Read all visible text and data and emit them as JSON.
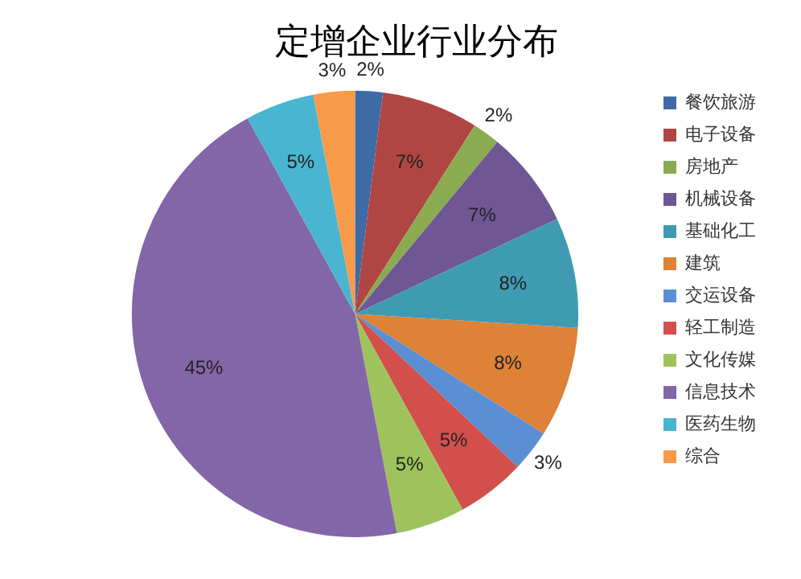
{
  "chart_data": {
    "type": "pie",
    "title": "定增企业行业分布",
    "categories": [
      "餐饮旅游",
      "电子设备",
      "房地产",
      "机械设备",
      "基础化工",
      "建筑",
      "交运设备",
      "轻工制造",
      "文化传媒",
      "信息技术",
      "医药生物",
      "综合"
    ],
    "values": [
      2,
      7,
      2,
      7,
      8,
      8,
      3,
      5,
      5,
      45,
      5,
      3
    ],
    "value_labels": [
      "2%",
      "7%",
      "2%",
      "7%",
      "8%",
      "8%",
      "3%",
      "5%",
      "5%",
      "45%",
      "5%",
      "3%"
    ],
    "colors": [
      "#3e6aa6",
      "#b04643",
      "#8aab4f",
      "#6f5694",
      "#3f9bb2",
      "#dd8236",
      "#5a8fd4",
      "#d24f4c",
      "#9fc35c",
      "#8366a8",
      "#4ab5d0",
      "#f79a4a"
    ],
    "legend": "right"
  }
}
